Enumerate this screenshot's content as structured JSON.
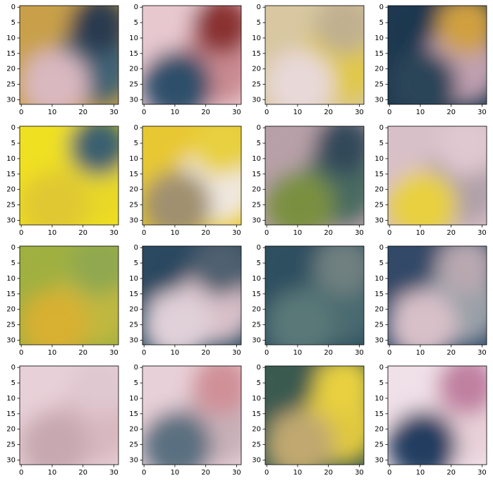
{
  "axes": {
    "xlim": [
      -0.5,
      31.5
    ],
    "ylim": [
      31.5,
      -0.5
    ],
    "xticks": [
      0,
      10,
      20,
      30
    ],
    "yticks": [
      0,
      5,
      10,
      15,
      20,
      25,
      30
    ]
  },
  "chart_data": [
    {
      "type": "image",
      "colors": [
        "#c9a04a",
        "#3f6275",
        "#d9b8c0",
        "#2a3a50"
      ]
    },
    {
      "type": "image",
      "colors": [
        "#e8c8cf",
        "#c98a90",
        "#2f4f6a",
        "#8a3030"
      ]
    },
    {
      "type": "image",
      "colors": [
        "#d8c7a0",
        "#e0c84a",
        "#e8d8d8",
        "#c0b090"
      ]
    },
    {
      "type": "image",
      "colors": [
        "#1f3850",
        "#c0a0b0",
        "#2a4458",
        "#d0a040"
      ]
    },
    {
      "type": "image",
      "colors": [
        "#f0e020",
        "#e8d828",
        "#e0c830",
        "#3a6070"
      ]
    },
    {
      "type": "image",
      "colors": [
        "#e8c830",
        "#f0e8e0",
        "#a09070",
        "#e8d040"
      ]
    },
    {
      "type": "image",
      "colors": [
        "#b8a0a8",
        "#4a6a60",
        "#7a9040",
        "#30485a"
      ]
    },
    {
      "type": "image",
      "colors": [
        "#d8c0c8",
        "#b0a0a8",
        "#e8d040",
        "#e0c8d0"
      ]
    },
    {
      "type": "image",
      "colors": [
        "#a0b040",
        "#c0b840",
        "#d8b030",
        "#90a850"
      ]
    },
    {
      "type": "image",
      "colors": [
        "#2a4a60",
        "#d8c0c8",
        "#e0d0d8",
        "#506070"
      ]
    },
    {
      "type": "image",
      "colors": [
        "#2f5060",
        "#4a6a70",
        "#5a7878",
        "#708080"
      ]
    },
    {
      "type": "image",
      "colors": [
        "#304a68",
        "#9aa0a8",
        "#d8c0c8",
        "#b8a8b0"
      ]
    },
    {
      "type": "image",
      "colors": [
        "#e8d0d8",
        "#d8b8c0",
        "#c8a8b0",
        "#e0c8d0"
      ]
    },
    {
      "type": "image",
      "colors": [
        "#e8d0d8",
        "#c8b0b8",
        "#5a7080",
        "#d09098"
      ]
    },
    {
      "type": "image",
      "colors": [
        "#3a5a50",
        "#e0c840",
        "#c0a870",
        "#e8d040"
      ]
    },
    {
      "type": "image",
      "colors": [
        "#f0e0e8",
        "#e8d0d8",
        "#203c60",
        "#c080a0"
      ]
    }
  ]
}
